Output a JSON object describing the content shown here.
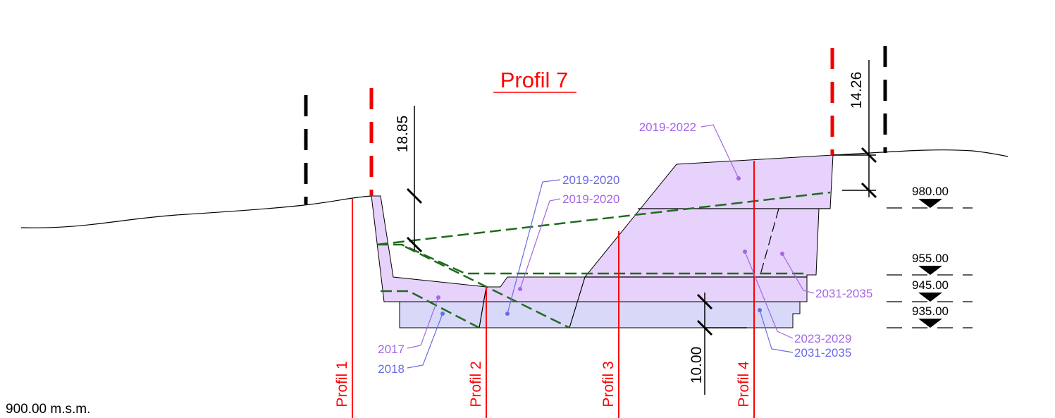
{
  "title": "Profil 7",
  "datum": "900.00 m.s.m.",
  "profiles": [
    "Profil 1",
    "Profil 2",
    "Profil 3",
    "Profil 4"
  ],
  "dimensions": [
    "18.85",
    "14.26",
    "10.00"
  ],
  "elevations": [
    "980.00",
    "955.00",
    "945.00",
    "935.00"
  ],
  "phases": [
    "2019-2022",
    "2019-2020",
    "2019-2020",
    "2031-2035",
    "2023-2029",
    "2031-2035",
    "2017",
    "2018"
  ]
}
